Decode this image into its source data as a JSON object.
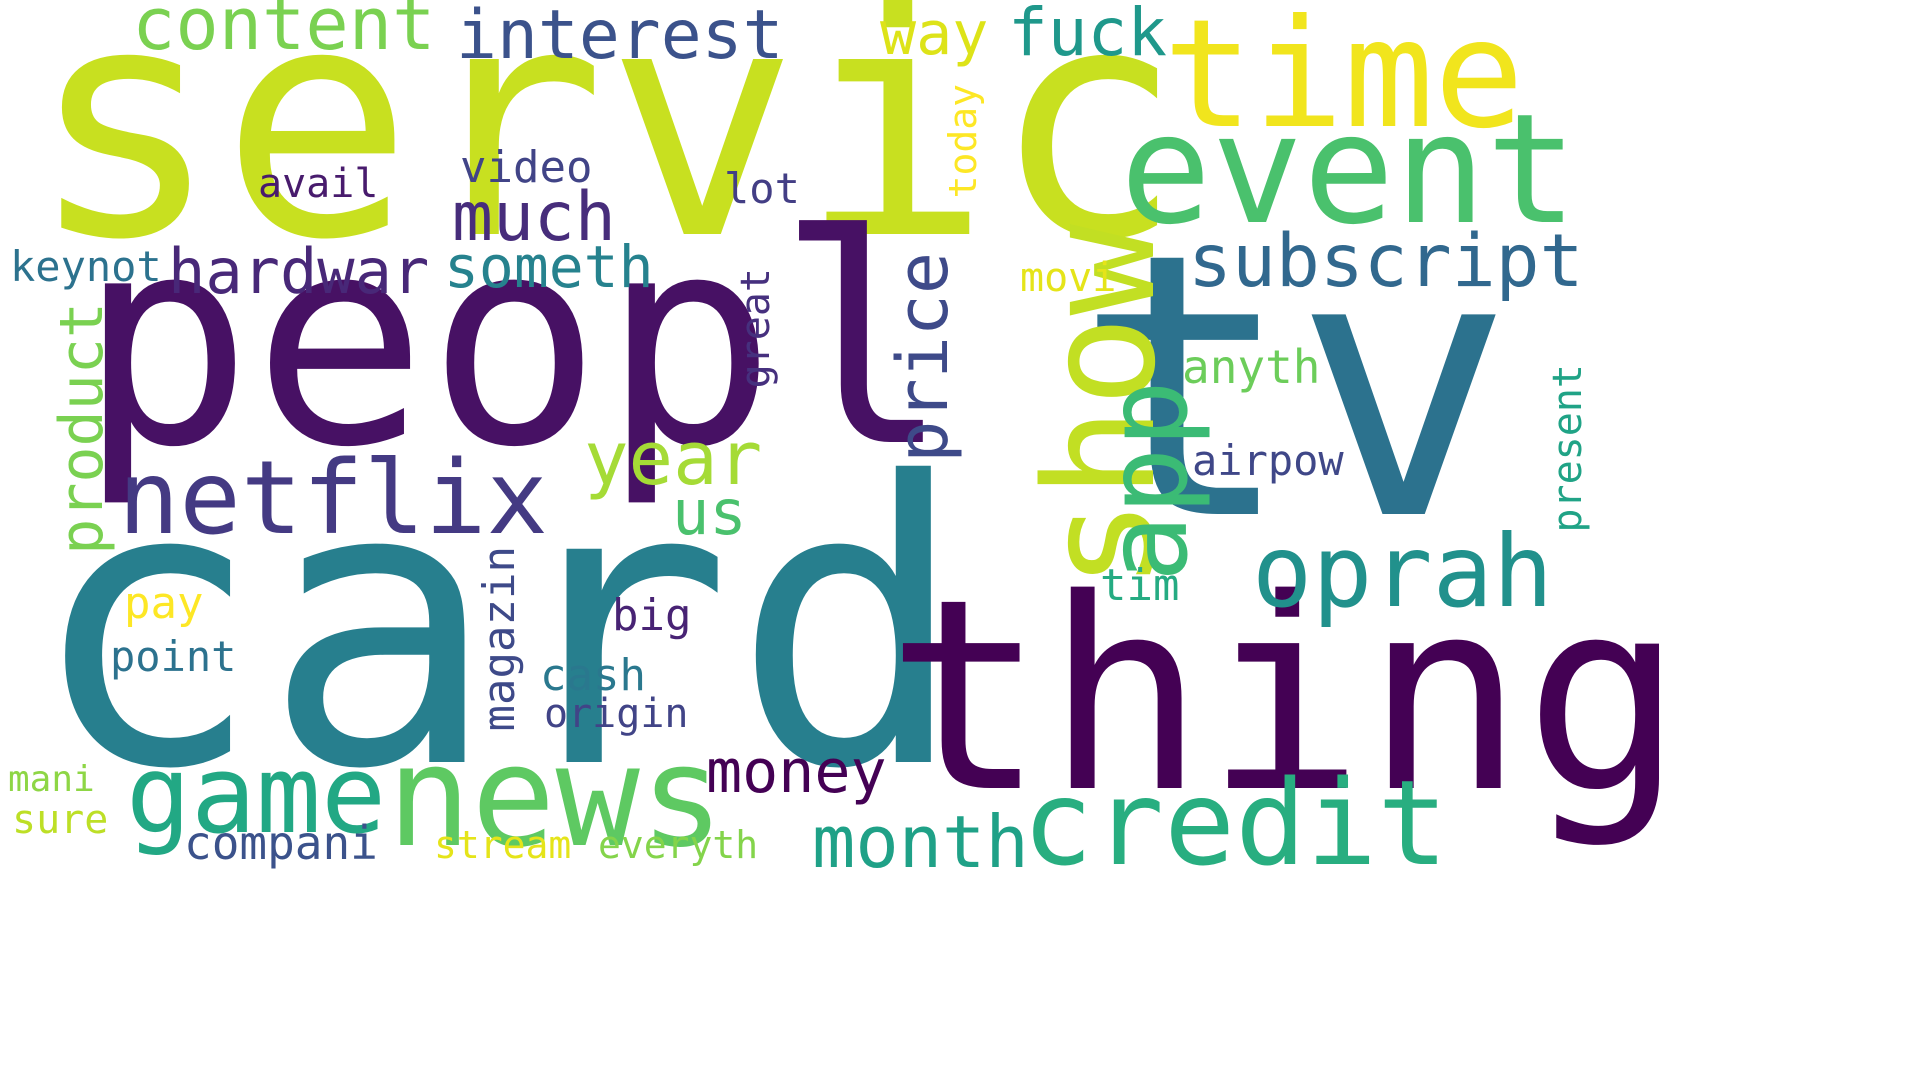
{
  "word_cloud": {
    "words": [
      {
        "id": "servic",
        "text": "servic",
        "color": "#c8e020"
      },
      {
        "id": "tv",
        "text": "tv",
        "color": "#2c728e"
      },
      {
        "id": "card",
        "text": "card",
        "color": "#277f8e"
      },
      {
        "id": "peopl",
        "text": "peopl",
        "color": "#471164"
      },
      {
        "id": "thing",
        "text": "thing",
        "color": "#440154"
      },
      {
        "id": "time",
        "text": "time",
        "color": "#f1e51d"
      },
      {
        "id": "event",
        "text": "event",
        "color": "#4ac16d"
      },
      {
        "id": "show",
        "text": "show",
        "color": "#c2df23"
      },
      {
        "id": "news",
        "text": "news",
        "color": "#5ec962"
      },
      {
        "id": "netflix",
        "text": "netflix",
        "color": "#443a83"
      },
      {
        "id": "credit",
        "text": "credit",
        "color": "#28ae80"
      },
      {
        "id": "game",
        "text": "game",
        "color": "#22a884"
      },
      {
        "id": "oprah",
        "text": "oprah",
        "color": "#21918c"
      },
      {
        "id": "app",
        "text": "app",
        "color": "#3bbb75"
      },
      {
        "id": "subscript",
        "text": "subscript",
        "color": "#31688e"
      },
      {
        "id": "content",
        "text": "content",
        "color": "#7ad151"
      },
      {
        "id": "interest",
        "text": "interest",
        "color": "#3b528b"
      },
      {
        "id": "hardwar",
        "text": "hardwar",
        "color": "#482878"
      },
      {
        "id": "much",
        "text": "much",
        "color": "#472d7b"
      },
      {
        "id": "someth",
        "text": "someth",
        "color": "#26828e"
      },
      {
        "id": "month",
        "text": "month",
        "color": "#1fa187"
      },
      {
        "id": "price",
        "text": "price",
        "color": "#3e4a89"
      },
      {
        "id": "fuck",
        "text": "fuck",
        "color": "#1f988b"
      },
      {
        "id": "year",
        "text": "year",
        "color": "#a5db36"
      },
      {
        "id": "money",
        "text": "money",
        "color": "#440154"
      },
      {
        "id": "product",
        "text": "product",
        "color": "#7ad151"
      },
      {
        "id": "way",
        "text": "way",
        "color": "#dde318"
      },
      {
        "id": "us",
        "text": "us",
        "color": "#4ac16d"
      },
      {
        "id": "companie",
        "text": "compani",
        "color": "#3b528b"
      },
      {
        "id": "magazin",
        "text": "magazin",
        "color": "#3e4a89"
      },
      {
        "id": "keynot",
        "text": "keynot",
        "color": "#2c728e"
      },
      {
        "id": "anyth",
        "text": "anyth",
        "color": "#6ccd5a"
      },
      {
        "id": "airpow",
        "text": "airpow",
        "color": "#3f4788"
      },
      {
        "id": "present",
        "text": "present",
        "color": "#20a386"
      },
      {
        "id": "video",
        "text": "video",
        "color": "#414487"
      },
      {
        "id": "avail",
        "text": "avail",
        "color": "#481b6d"
      },
      {
        "id": "lot",
        "text": "lot",
        "color": "#433e85"
      },
      {
        "id": "today",
        "text": "today",
        "color": "#fde725"
      },
      {
        "id": "movi",
        "text": "movi",
        "color": "#e5e419"
      },
      {
        "id": "great",
        "text": "great",
        "color": "#46307e"
      },
      {
        "id": "tim",
        "text": "tim",
        "color": "#25ab82"
      },
      {
        "id": "big",
        "text": "big",
        "color": "#482374"
      },
      {
        "id": "cash",
        "text": "cash",
        "color": "#2a788e"
      },
      {
        "id": "origin",
        "text": "origin",
        "color": "#414487"
      },
      {
        "id": "pay",
        "text": "pay",
        "color": "#fde725"
      },
      {
        "id": "point",
        "text": "point",
        "color": "#2c728e"
      },
      {
        "id": "mani",
        "text": "mani",
        "color": "#8ed645"
      },
      {
        "id": "sure",
        "text": "sure",
        "color": "#bddf26"
      },
      {
        "id": "stream",
        "text": "stream",
        "color": "#e5e419"
      },
      {
        "id": "everyth",
        "text": "everyth",
        "color": "#84d44b"
      }
    ]
  }
}
